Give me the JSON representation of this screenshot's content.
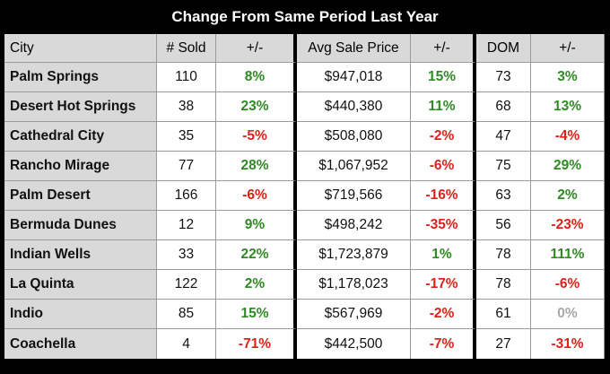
{
  "title": "Change From Same Period Last Year",
  "headers": {
    "city": "City",
    "sold": "# Sold",
    "sold_change": "+/-",
    "price": "Avg Sale Price",
    "price_change": "+/-",
    "dom": "DOM",
    "dom_change": "+/-"
  },
  "colors": {
    "positive": "#2e8b22",
    "negative": "#e0201a",
    "neutral": "#a8a8a8"
  },
  "rows": [
    {
      "city": "Palm Springs",
      "sold": "110",
      "sold_change": "8%",
      "price": "$947,018",
      "price_change": "15%",
      "dom": "73",
      "dom_change": "3%"
    },
    {
      "city": "Desert Hot Springs",
      "sold": "38",
      "sold_change": "23%",
      "price": "$440,380",
      "price_change": "11%",
      "dom": "68",
      "dom_change": "13%"
    },
    {
      "city": "Cathedral City",
      "sold": "35",
      "sold_change": "-5%",
      "price": "$508,080",
      "price_change": "-2%",
      "dom": "47",
      "dom_change": "-4%"
    },
    {
      "city": "Rancho Mirage",
      "sold": "77",
      "sold_change": "28%",
      "price": "$1,067,952",
      "price_change": "-6%",
      "dom": "75",
      "dom_change": "29%"
    },
    {
      "city": "Palm Desert",
      "sold": "166",
      "sold_change": "-6%",
      "price": "$719,566",
      "price_change": "-16%",
      "dom": "63",
      "dom_change": "2%"
    },
    {
      "city": "Bermuda Dunes",
      "sold": "12",
      "sold_change": "9%",
      "price": "$498,242",
      "price_change": "-35%",
      "dom": "56",
      "dom_change": "-23%"
    },
    {
      "city": "Indian Wells",
      "sold": "33",
      "sold_change": "22%",
      "price": "$1,723,879",
      "price_change": "1%",
      "dom": "78",
      "dom_change": "111%"
    },
    {
      "city": "La Quinta",
      "sold": "122",
      "sold_change": "2%",
      "price": "$1,178,023",
      "price_change": "-17%",
      "dom": "78",
      "dom_change": "-6%"
    },
    {
      "city": "Indio",
      "sold": "85",
      "sold_change": "15%",
      "price": "$567,969",
      "price_change": "-2%",
      "dom": "61",
      "dom_change": "0%"
    },
    {
      "city": "Coachella",
      "sold": "4",
      "sold_change": "-71%",
      "price": "$442,500",
      "price_change": "-7%",
      "dom": "27",
      "dom_change": "-31%"
    }
  ]
}
